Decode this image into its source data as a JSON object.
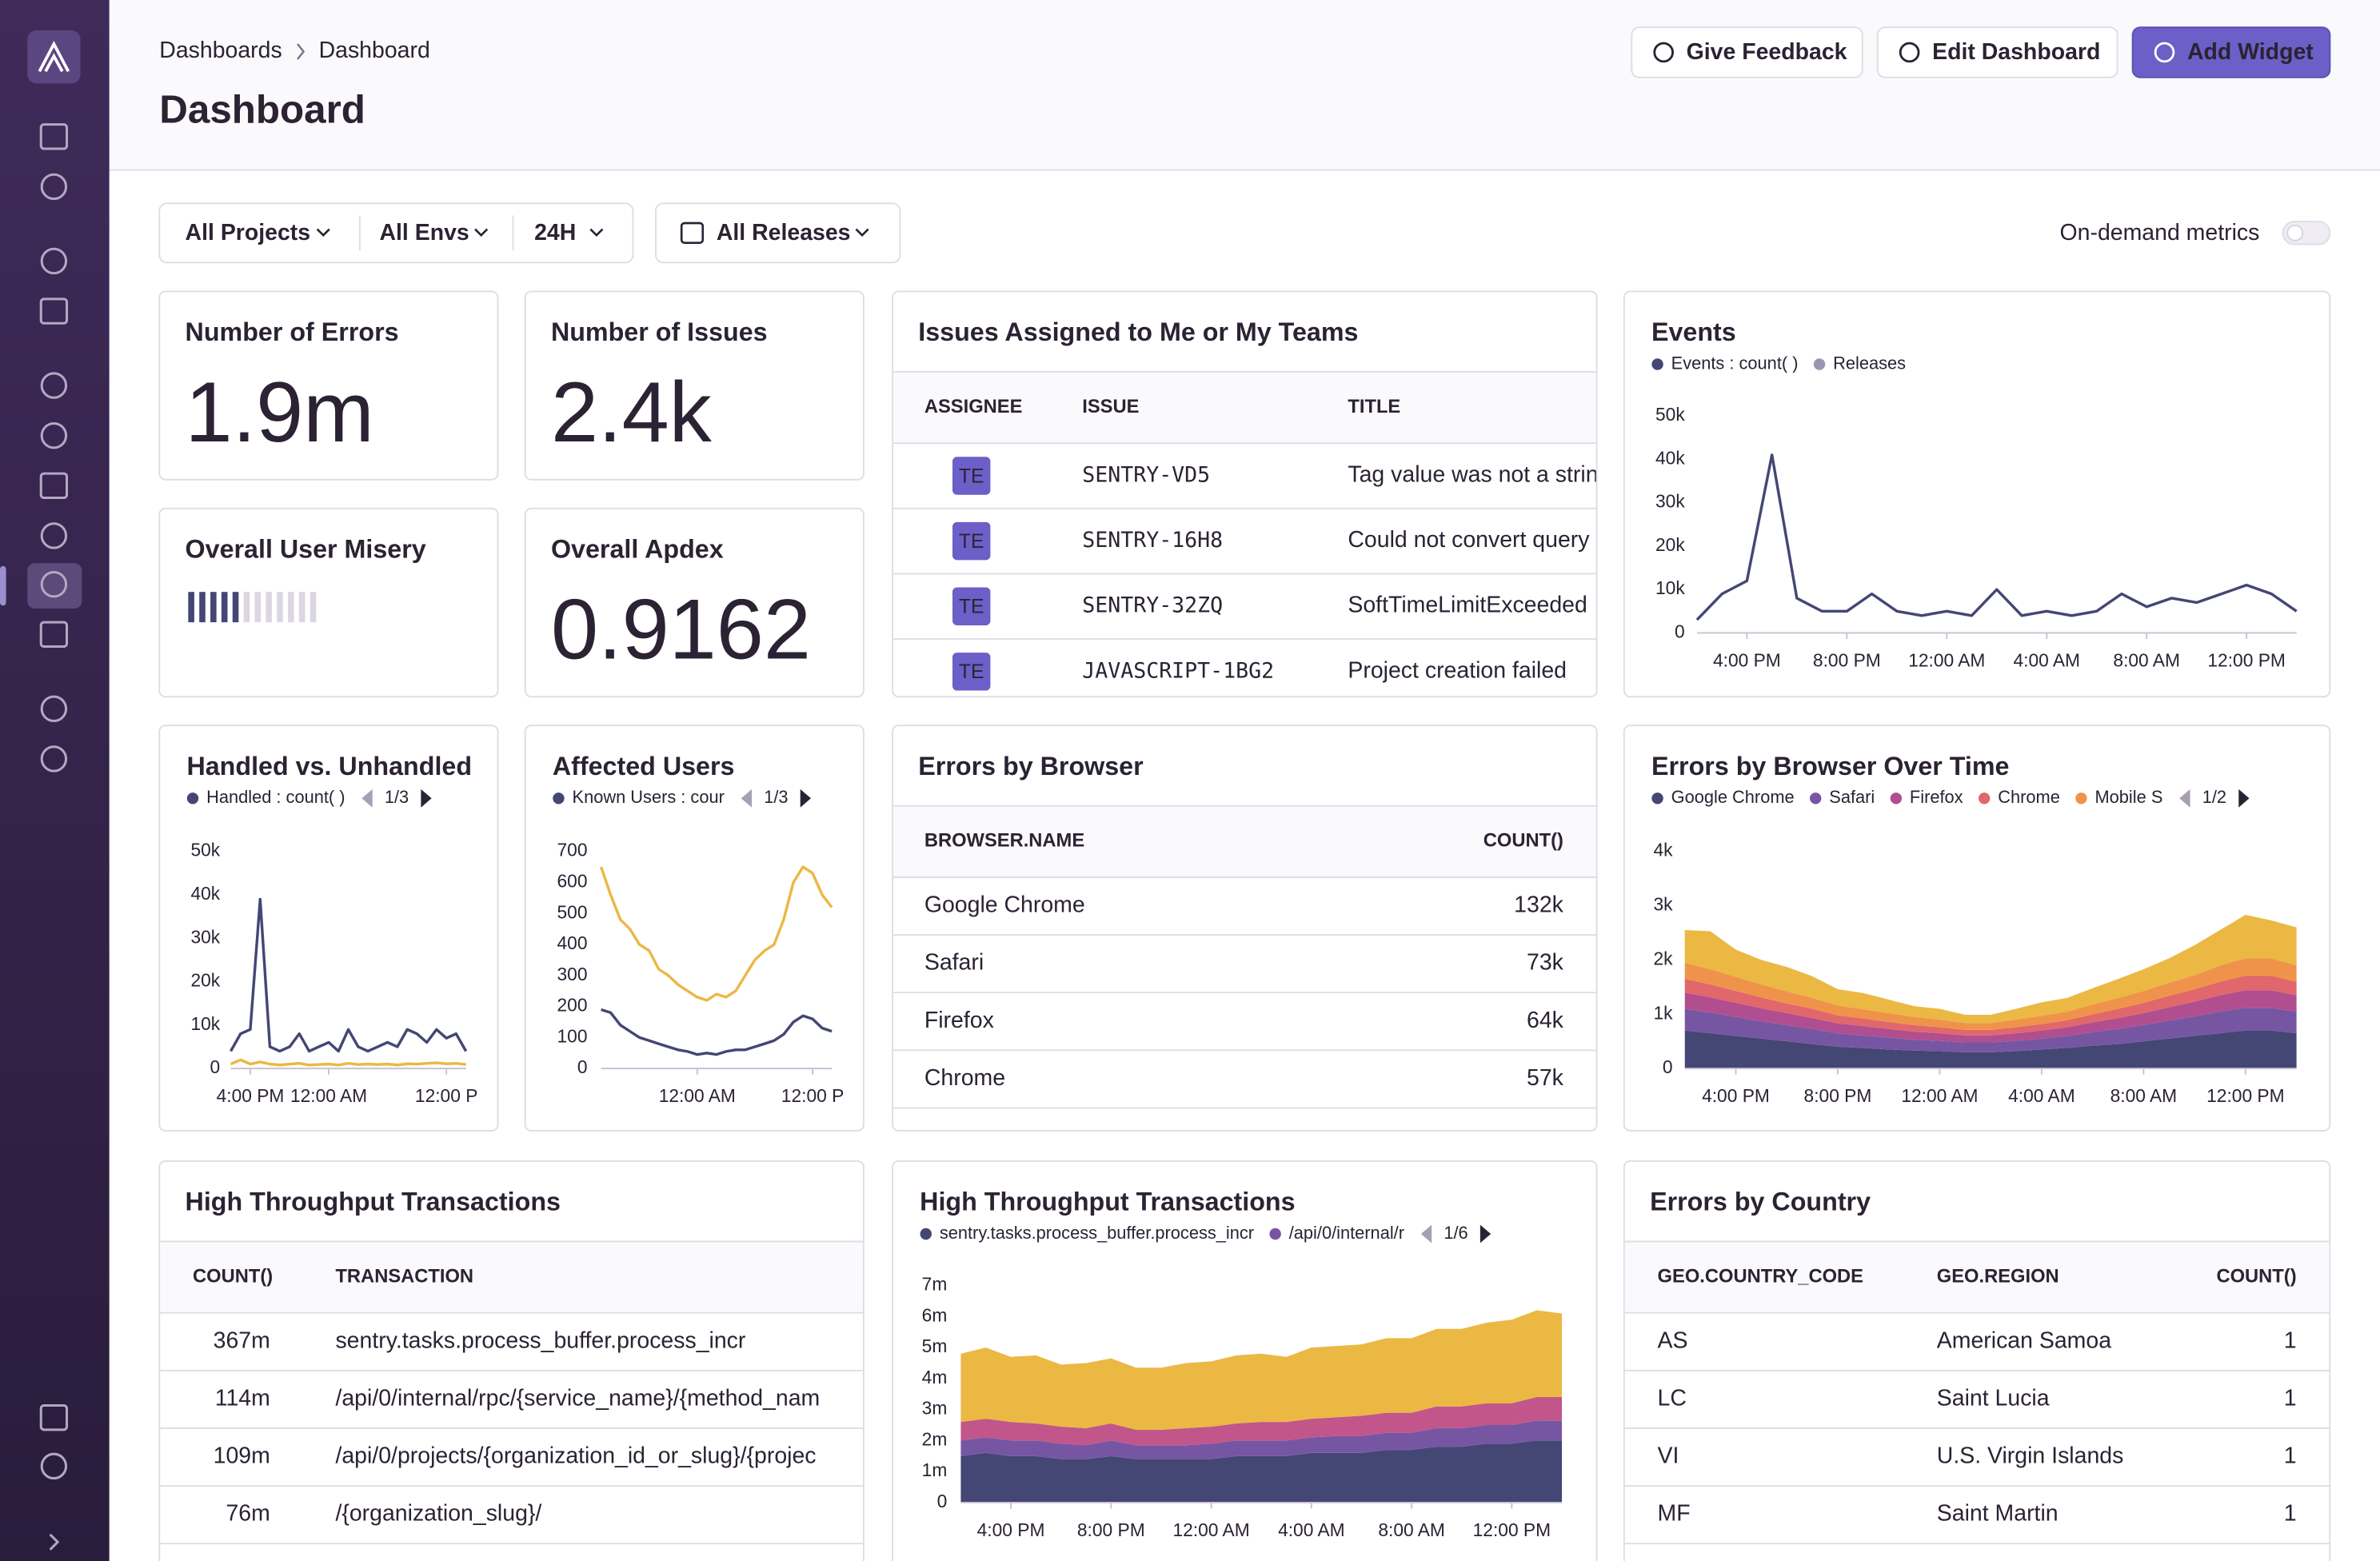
{
  "breadcrumbs": [
    "Dashboards",
    "Dashboard"
  ],
  "title": "Dashboard",
  "buttons": [
    "Give Feedback",
    "Edit Dashboard",
    "Add Widget"
  ],
  "filters": [
    "All Projects",
    "All Envs",
    "24H",
    "All Releases"
  ],
  "on_demand": "On-demand metrics",
  "widgets": {
    "big_numbers": [
      {
        "title": "Number of Errors",
        "value": "1.9m"
      },
      {
        "title": "Number of Issues",
        "value": "2.4k"
      },
      {
        "title": "Overall Apdex",
        "value": "0.9162"
      }
    ],
    "user_misery": {
      "title": "Overall User Misery"
    },
    "issues": {
      "title": "Issues Assigned to Me or My Teams",
      "columns": [
        "ASSIGNEE",
        "ISSUE",
        "TITLE"
      ],
      "rows": [
        [
          "TE",
          "SENTRY-VD5",
          "Tag value was not a strin"
        ],
        [
          "TE",
          "SENTRY-16H8",
          "Could not convert query"
        ],
        [
          "TE",
          "SENTRY-32ZQ",
          "SoftTimeLimitExceeded"
        ],
        [
          "TE",
          "JAVASCRIPT-1BG2",
          "Project creation failed"
        ]
      ]
    },
    "browsers": {
      "title": "Errors by Browser",
      "columns": [
        "BROWSER.NAME",
        "COUNT()"
      ],
      "rows": [
        [
          "Google Chrome",
          "132k"
        ],
        [
          "Safari",
          "73k"
        ],
        [
          "Firefox",
          "64k"
        ],
        [
          "Chrome",
          "57k"
        ]
      ]
    },
    "transactions": {
      "title": "High Throughput Transactions",
      "columns": [
        "COUNT()",
        "TRANSACTION"
      ],
      "rows": [
        [
          "367m",
          "sentry.tasks.process_buffer.process_incr"
        ],
        [
          "114m",
          "/api/0/internal/rpc/{service_name}/{method_nam"
        ],
        [
          "109m",
          "/api/0/projects/{organization_id_or_slug}/{projec"
        ],
        [
          "76m",
          "/{organization_slug}/"
        ]
      ]
    },
    "countries": {
      "title": "Errors by Country",
      "columns": [
        "GEO.COUNTRY_CODE",
        "GEO.REGION",
        "COUNT()"
      ],
      "rows": [
        [
          "AS",
          "American Samoa",
          "1"
        ],
        [
          "LC",
          "Saint Lucia",
          "1"
        ],
        [
          "VI",
          "U.S. Virgin Islands",
          "1"
        ],
        [
          "MF",
          "Saint Martin",
          "1"
        ]
      ]
    }
  },
  "chart_data": [
    {
      "type": "line",
      "title": "Events",
      "grid": false,
      "release_legend": {
        "name": "Releases",
        "color": "#9d93b3"
      },
      "categories": [
        null,
        null,
        "4:00 PM",
        null,
        null,
        null,
        "8:00 PM",
        null,
        null,
        null,
        "12:00 AM",
        null,
        null,
        null,
        "4:00 AM",
        null,
        null,
        null,
        "8:00 AM",
        null,
        null,
        null,
        "12:00 PM",
        null,
        null
      ],
      "ylim": [
        0,
        50000
      ],
      "yticks": [
        0,
        {
          "value": 10000,
          "label": "10k"
        },
        {
          "value": 20000,
          "label": "20k"
        },
        {
          "value": 30000,
          "label": "30k"
        },
        {
          "value": 40000,
          "label": "40k"
        },
        {
          "value": 50000,
          "label": "50k"
        }
      ],
      "series": [
        {
          "name": "Events : count( )",
          "color": "#444674",
          "values": [
            3000,
            9000,
            12000,
            41000,
            8000,
            5000,
            5000,
            9000,
            5000,
            4000,
            5000,
            4000,
            10000,
            4000,
            5000,
            4000,
            5000,
            9000,
            6000,
            8000,
            7000,
            9000,
            11000,
            9000,
            5000
          ]
        }
      ]
    },
    {
      "type": "line",
      "title": "Handled vs. Unhandled",
      "grid": false,
      "pager": "1/3",
      "categories": [
        null,
        null,
        "4:00 PM",
        null,
        null,
        null,
        null,
        null,
        null,
        null,
        "12:00 AM",
        null,
        null,
        null,
        null,
        null,
        null,
        null,
        null,
        null,
        null,
        null,
        "12:00 P",
        null,
        null
      ],
      "ylim": [
        0,
        50000
      ],
      "yticks": [
        0,
        {
          "value": 10000,
          "label": "10k"
        },
        {
          "value": 20000,
          "label": "20k"
        },
        {
          "value": 30000,
          "label": "30k"
        },
        {
          "value": 40000,
          "label": "40k"
        },
        {
          "value": 50000,
          "label": "50k"
        }
      ],
      "series": [
        {
          "name": "Handled : count( )",
          "color": "#444674",
          "values": [
            4000,
            8000,
            9000,
            39000,
            5000,
            4000,
            5000,
            8000,
            4000,
            5000,
            6000,
            4000,
            9000,
            5000,
            4000,
            5000,
            6000,
            5000,
            9000,
            8000,
            6000,
            9000,
            7000,
            8000,
            4000
          ]
        },
        {
          "color": "#ebb843",
          "values": [
            1000,
            2000,
            1000,
            1500,
            1000,
            800,
            1000,
            1200,
            800,
            900,
            1000,
            800,
            1200,
            900,
            1000,
            900,
            1000,
            800,
            1100,
            1000,
            1200,
            1300,
            1100,
            1200,
            900
          ]
        }
      ]
    },
    {
      "type": "line",
      "title": "Affected Users",
      "grid": false,
      "pager": "1/3",
      "categories": [
        null,
        null,
        null,
        null,
        null,
        null,
        null,
        null,
        null,
        null,
        "12:00 AM",
        null,
        null,
        null,
        null,
        null,
        null,
        null,
        null,
        null,
        null,
        null,
        "12:00 P",
        null,
        null
      ],
      "ylim": [
        0,
        700
      ],
      "yticks": [
        0,
        100,
        200,
        300,
        400,
        500,
        600,
        700
      ],
      "series": [
        {
          "color": "#ebb843",
          "values": [
            650,
            560,
            480,
            450,
            400,
            380,
            320,
            300,
            270,
            250,
            230,
            220,
            240,
            230,
            250,
            300,
            350,
            380,
            400,
            480,
            600,
            650,
            630,
            560,
            520
          ]
        },
        {
          "name": "Known Users : cour",
          "color": "#444674",
          "values": [
            190,
            180,
            140,
            120,
            100,
            90,
            80,
            70,
            60,
            55,
            45,
            50,
            45,
            55,
            60,
            60,
            70,
            80,
            90,
            110,
            150,
            170,
            160,
            130,
            120
          ]
        }
      ]
    },
    {
      "type": "area",
      "title": "Errors by Browser Over Time",
      "grid": false,
      "pager": "1/2",
      "categories": [
        null,
        null,
        "4:00 PM",
        null,
        null,
        null,
        "8:00 PM",
        null,
        null,
        null,
        "12:00 AM",
        null,
        null,
        null,
        "4:00 AM",
        null,
        null,
        null,
        "8:00 AM",
        null,
        null,
        null,
        "12:00 PM",
        null,
        null
      ],
      "ylim": [
        0,
        4000
      ],
      "yticks": [
        0,
        {
          "value": 1000,
          "label": "1k"
        },
        {
          "value": 2000,
          "label": "2k"
        },
        {
          "value": 3000,
          "label": "3k"
        },
        {
          "value": 4000,
          "label": "4k"
        }
      ],
      "series": [
        {
          "name": "Google Chrome",
          "color": "#444674",
          "values": [
            700,
            650,
            600,
            550,
            500,
            450,
            400,
            380,
            350,
            330,
            320,
            300,
            300,
            320,
            350,
            380,
            420,
            450,
            500,
            550,
            600,
            650,
            700,
            700,
            650
          ]
        },
        {
          "name": "Safari",
          "color": "#7656a3",
          "values": [
            400,
            380,
            350,
            320,
            300,
            280,
            250,
            230,
            220,
            200,
            190,
            180,
            180,
            190,
            200,
            220,
            250,
            280,
            300,
            330,
            360,
            400,
            420,
            420,
            400
          ]
        },
        {
          "name": "Firefox",
          "color": "#b14e8f",
          "values": [
            300,
            280,
            260,
            240,
            220,
            200,
            180,
            170,
            160,
            150,
            140,
            130,
            130,
            140,
            150,
            160,
            180,
            200,
            220,
            250,
            270,
            300,
            320,
            320,
            300
          ]
        },
        {
          "name": "Chrome",
          "color": "#e0676b",
          "values": [
            250,
            240,
            220,
            200,
            180,
            170,
            150,
            140,
            130,
            120,
            110,
            100,
            100,
            110,
            120,
            130,
            150,
            170,
            190,
            210,
            230,
            250,
            270,
            270,
            250
          ]
        },
        {
          "name": "Mobile S",
          "color": "#f0934a",
          "values": [
            300,
            280,
            260,
            240,
            220,
            200,
            180,
            170,
            160,
            150,
            140,
            130,
            130,
            140,
            150,
            160,
            180,
            200,
            220,
            240,
            260,
            300,
            320,
            320,
            300
          ]
        },
        {
          "color": "#ebb843",
          "values": [
            600,
            700,
            500,
            450,
            450,
            400,
            300,
            300,
            250,
            200,
            200,
            150,
            150,
            200,
            250,
            250,
            300,
            350,
            400,
            450,
            550,
            650,
            800,
            700,
            700
          ]
        }
      ]
    },
    {
      "type": "area",
      "title": "High Throughput Transactions",
      "grid": false,
      "pager": "1/6",
      "categories": [
        null,
        null,
        "4:00 PM",
        null,
        null,
        null,
        "8:00 PM",
        null,
        null,
        null,
        "12:00 AM",
        null,
        null,
        null,
        "4:00 AM",
        null,
        null,
        null,
        "8:00 AM",
        null,
        null,
        null,
        "12:00 PM",
        null,
        null
      ],
      "ylim": [
        0,
        7000000
      ],
      "yticks": [
        0,
        {
          "value": 1000000,
          "label": "1m"
        },
        {
          "value": 2000000,
          "label": "2m"
        },
        {
          "value": 3000000,
          "label": "3m"
        },
        {
          "value": 4000000,
          "label": "4m"
        },
        {
          "value": 5000000,
          "label": "5m"
        },
        {
          "value": 6000000,
          "label": "6m"
        },
        {
          "value": 7000000,
          "label": "7m"
        }
      ],
      "series": [
        {
          "name": "sentry.tasks.process_buffer.process_incr",
          "color": "#444674",
          "values": [
            1500000,
            1600000,
            1500000,
            1500000,
            1400000,
            1400000,
            1500000,
            1400000,
            1400000,
            1400000,
            1400000,
            1500000,
            1500000,
            1500000,
            1600000,
            1600000,
            1600000,
            1700000,
            1700000,
            1800000,
            1800000,
            1900000,
            1900000,
            2000000,
            2000000
          ]
        },
        {
          "name": "/api/0/internal/r",
          "color": "#7656a3",
          "values": [
            500000,
            500000,
            500000,
            500000,
            500000,
            450000,
            500000,
            450000,
            450000,
            450000,
            500000,
            500000,
            500000,
            500000,
            500000,
            550000,
            550000,
            550000,
            550000,
            600000,
            600000,
            600000,
            600000,
            650000,
            650000
          ]
        },
        {
          "color": "#c2568a",
          "values": [
            600000,
            600000,
            600000,
            550000,
            550000,
            550000,
            550000,
            500000,
            500000,
            550000,
            550000,
            550000,
            600000,
            600000,
            600000,
            600000,
            650000,
            650000,
            650000,
            700000,
            700000,
            700000,
            700000,
            750000,
            750000
          ]
        },
        {
          "color": "#ebb843",
          "values": [
            2200000,
            2300000,
            2100000,
            2200000,
            2000000,
            2100000,
            2100000,
            2000000,
            2000000,
            2100000,
            2100000,
            2200000,
            2200000,
            2100000,
            2300000,
            2300000,
            2300000,
            2400000,
            2400000,
            2500000,
            2500000,
            2600000,
            2700000,
            2800000,
            2700000
          ]
        }
      ]
    }
  ]
}
